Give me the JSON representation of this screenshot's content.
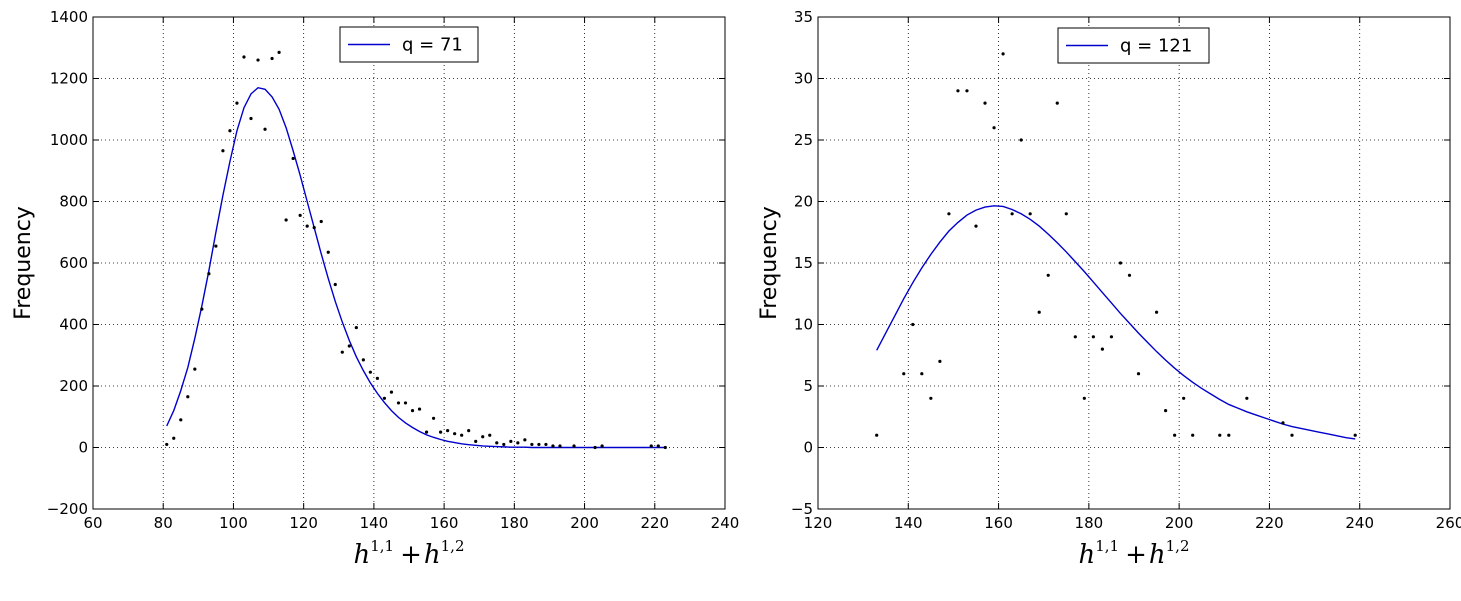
{
  "chart_data": [
    {
      "type": "scatter",
      "x_label": {
        "base1": "h",
        "sup1": "1,1",
        "plus": "+",
        "base2": "h",
        "sup2": "1,2"
      },
      "ylabel": "Frequency",
      "xlim": [
        60,
        240
      ],
      "ylim": [
        -200,
        1400
      ],
      "xticks": [
        60,
        80,
        100,
        120,
        140,
        160,
        180,
        200,
        220,
        240
      ],
      "yticks": [
        -200,
        0,
        200,
        400,
        600,
        800,
        1000,
        1200,
        1400
      ],
      "grid": true,
      "legend_position": "top-center",
      "line_color": "#0000cc",
      "point_color": "#000000",
      "series": [
        {
          "name": "q = 71",
          "kind": "line",
          "x": [
            81,
            83,
            85,
            87,
            89,
            91,
            93,
            95,
            97,
            99,
            101,
            103,
            105,
            107,
            109,
            111,
            113,
            115,
            117,
            119,
            121,
            123,
            125,
            127,
            129,
            131,
            133,
            135,
            137,
            139,
            141,
            143,
            145,
            147,
            149,
            151,
            153,
            155,
            157,
            159,
            161,
            163,
            165,
            167,
            169,
            171,
            173,
            175,
            177,
            179,
            181,
            183,
            185,
            187,
            189,
            191,
            193,
            195,
            197,
            199,
            201,
            203,
            205,
            207,
            209,
            211,
            213,
            215,
            217,
            219,
            221,
            223
          ],
          "y": [
            70,
            120,
            185,
            260,
            355,
            460,
            575,
            700,
            820,
            930,
            1030,
            1105,
            1150,
            1170,
            1165,
            1140,
            1100,
            1040,
            965,
            885,
            800,
            715,
            630,
            550,
            475,
            408,
            348,
            295,
            250,
            210,
            176,
            146,
            120,
            98,
            80,
            65,
            52,
            41,
            33,
            26,
            20,
            16,
            12,
            9,
            7,
            5,
            4,
            3,
            2,
            1,
            1,
            1,
            0,
            0,
            0,
            0,
            0,
            0,
            0,
            0,
            0,
            0,
            0,
            0,
            0,
            0,
            0,
            0,
            0,
            0,
            0,
            0
          ]
        },
        {
          "name": "",
          "kind": "points",
          "x": [
            81,
            83,
            85,
            87,
            89,
            91,
            93,
            95,
            97,
            99,
            101,
            103,
            105,
            107,
            109,
            111,
            113,
            115,
            117,
            119,
            121,
            123,
            125,
            127,
            129,
            131,
            133,
            135,
            137,
            139,
            141,
            143,
            145,
            147,
            149,
            151,
            153,
            155,
            157,
            159,
            161,
            163,
            165,
            167,
            169,
            171,
            173,
            175,
            177,
            179,
            181,
            183,
            185,
            187,
            189,
            191,
            193,
            197,
            203,
            205,
            219,
            221,
            223
          ],
          "y": [
            10,
            30,
            90,
            165,
            255,
            450,
            565,
            655,
            965,
            1030,
            1120,
            1270,
            1070,
            1260,
            1035,
            1265,
            1285,
            740,
            940,
            755,
            720,
            715,
            735,
            635,
            530,
            310,
            330,
            390,
            285,
            245,
            225,
            160,
            180,
            145,
            145,
            120,
            125,
            50,
            95,
            50,
            55,
            45,
            40,
            55,
            20,
            35,
            40,
            15,
            10,
            20,
            15,
            25,
            10,
            10,
            10,
            5,
            5,
            5,
            0,
            5,
            5,
            5,
            0
          ]
        }
      ]
    },
    {
      "type": "scatter",
      "x_label": {
        "base1": "h",
        "sup1": "1,1",
        "plus": "+",
        "base2": "h",
        "sup2": "1,2"
      },
      "ylabel": "Frequency",
      "xlim": [
        120,
        260
      ],
      "ylim": [
        -5,
        35
      ],
      "xticks": [
        120,
        140,
        160,
        180,
        200,
        220,
        240,
        260
      ],
      "yticks": [
        -5,
        0,
        5,
        10,
        15,
        20,
        25,
        30,
        35
      ],
      "grid": true,
      "legend_position": "top-center",
      "line_color": "#0000cc",
      "point_color": "#000000",
      "series": [
        {
          "name": "q = 121",
          "kind": "line",
          "x": [
            133,
            135,
            137,
            139,
            141,
            143,
            145,
            147,
            149,
            151,
            153,
            155,
            157,
            159,
            161,
            163,
            165,
            167,
            169,
            171,
            173,
            175,
            177,
            179,
            181,
            183,
            185,
            187,
            189,
            191,
            193,
            195,
            197,
            199,
            201,
            203,
            205,
            207,
            209,
            211,
            213,
            215,
            217,
            219,
            221,
            223,
            225,
            227,
            229,
            231,
            233,
            235,
            237,
            239
          ],
          "y": [
            7.9,
            9.3,
            10.7,
            12.1,
            13.4,
            14.6,
            15.7,
            16.7,
            17.6,
            18.3,
            18.9,
            19.3,
            19.55,
            19.65,
            19.6,
            19.35,
            19.0,
            18.55,
            18.0,
            17.35,
            16.65,
            15.9,
            15.1,
            14.3,
            13.45,
            12.6,
            11.75,
            10.9,
            10.1,
            9.3,
            8.55,
            7.8,
            7.1,
            6.45,
            5.85,
            5.3,
            4.8,
            4.35,
            3.9,
            3.5,
            3.2,
            2.9,
            2.65,
            2.4,
            2.15,
            1.9,
            1.7,
            1.55,
            1.4,
            1.25,
            1.1,
            0.95,
            0.8,
            0.7
          ]
        },
        {
          "name": "",
          "kind": "points",
          "x": [
            133,
            139,
            141,
            143,
            145,
            147,
            149,
            151,
            153,
            155,
            157,
            159,
            161,
            163,
            165,
            167,
            169,
            171,
            173,
            175,
            177,
            179,
            181,
            183,
            185,
            187,
            189,
            191,
            195,
            197,
            199,
            201,
            203,
            209,
            211,
            215,
            223,
            225,
            239
          ],
          "y": [
            1,
            6,
            10,
            6,
            4,
            7,
            19,
            29,
            29,
            18,
            28,
            26,
            32,
            19,
            25,
            19,
            11,
            14,
            28,
            19,
            9,
            4,
            9,
            8,
            9,
            15,
            14,
            6,
            11,
            3,
            1,
            4,
            1,
            1,
            1,
            4,
            2,
            1,
            1
          ]
        }
      ]
    }
  ]
}
